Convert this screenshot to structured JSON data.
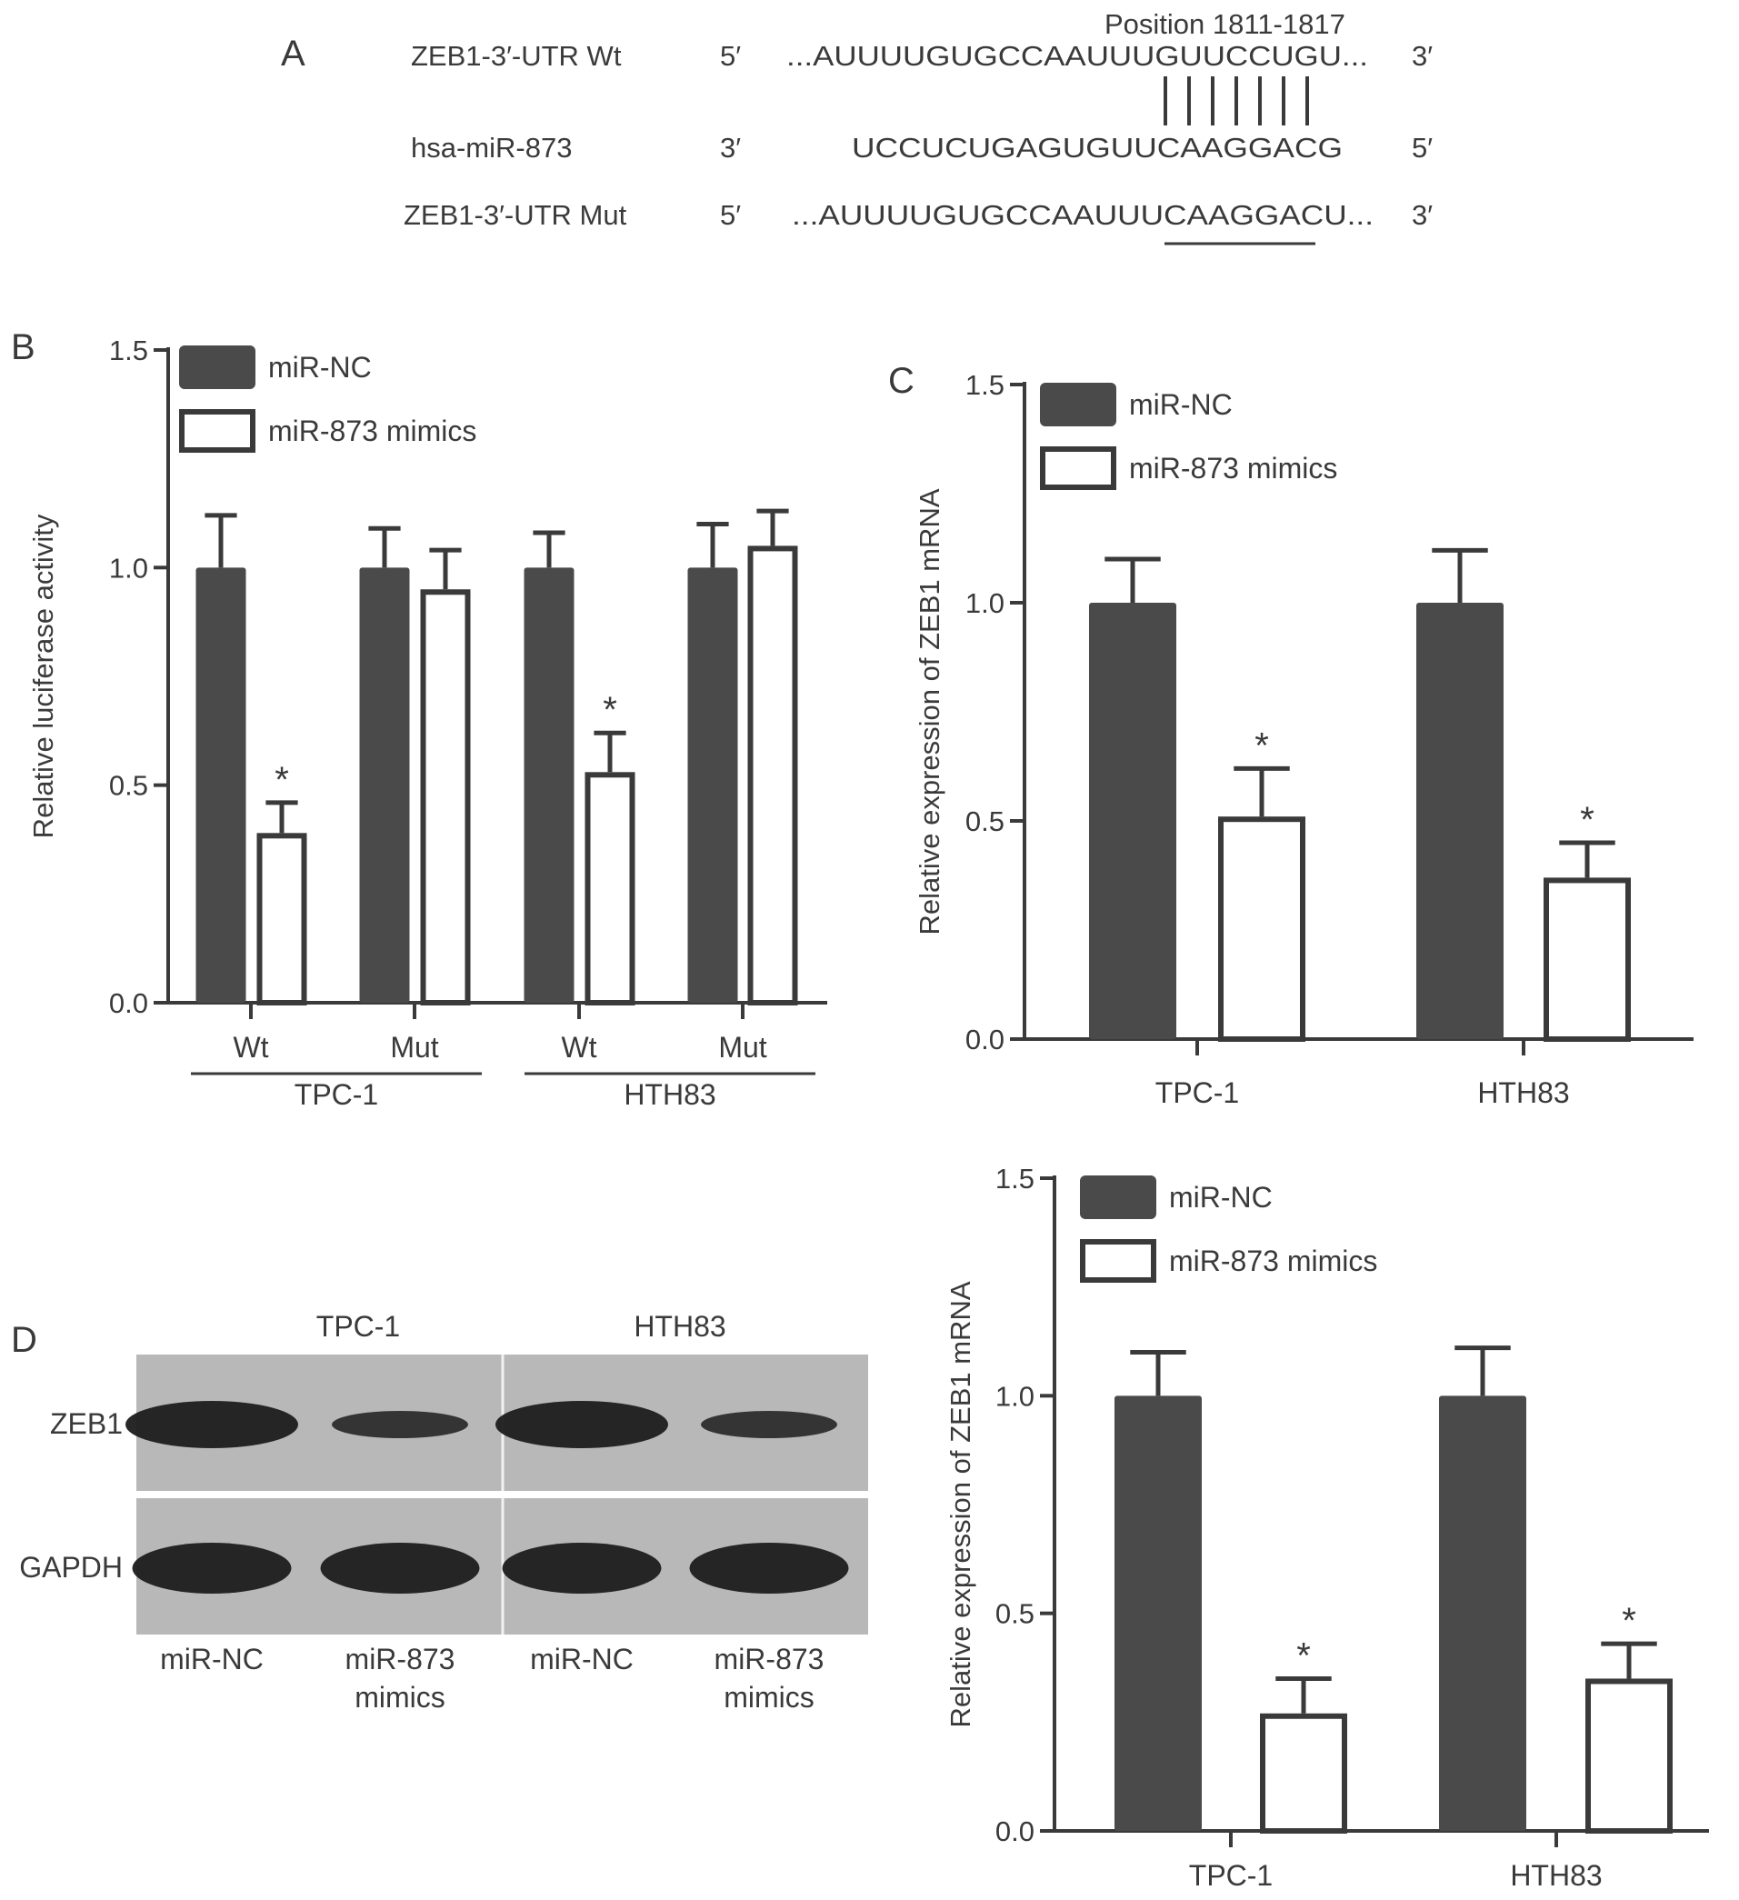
{
  "panel_labels": [
    "A",
    "B",
    "C",
    "D"
  ],
  "sequence_alignment": {
    "position_label": "Position 1811-1817",
    "rows": [
      {
        "name": "ZEB1-3′-UTR Wt",
        "left_end": "5′",
        "sequence": "...AUUUUGUGCCAAUUUGUUCCUGU...",
        "right_end": "3′"
      },
      {
        "name": "hsa-miR-873",
        "left_end": "3′",
        "sequence": "UCCUCUGAGUGUUCAAGGACG",
        "right_end": "5′"
      },
      {
        "name": "ZEB1-3′-UTR Mut",
        "left_end": "5′",
        "sequence": "...AUUUUGUGCCAAUUUCAAGGACU...",
        "right_end": "3′"
      }
    ]
  },
  "legend": {
    "series": [
      "miR-NC",
      "miR-873 mimics"
    ],
    "colors": {
      "miR-NC": "#4a4a4a",
      "miR-873 mimics": "#ffffff"
    }
  },
  "chart_data": [
    {
      "panel": "B",
      "type": "bar",
      "ylabel": "Relative luciferase activity",
      "ylim": [
        0,
        1.5
      ],
      "yticks": [
        "0.0",
        "0.5",
        "1.0",
        "1.5"
      ],
      "categories": [
        "Wt",
        "Mut",
        "Wt",
        "Mut"
      ],
      "groups": [
        {
          "label": "TPC-1",
          "categories": [
            "Wt",
            "Mut"
          ]
        },
        {
          "label": "HTH83",
          "categories": [
            "Wt",
            "Mut"
          ]
        }
      ],
      "series": [
        {
          "name": "miR-NC",
          "values": [
            1.0,
            1.0,
            1.0,
            1.0
          ],
          "errors": [
            0.12,
            0.09,
            0.08,
            0.1
          ]
        },
        {
          "name": "miR-873 mimics",
          "values": [
            0.39,
            0.95,
            0.53,
            1.05
          ],
          "errors": [
            0.07,
            0.09,
            0.09,
            0.08
          ]
        }
      ],
      "significance": [
        "*",
        "",
        "*",
        ""
      ],
      "legend_position": "top-left"
    },
    {
      "panel": "C",
      "type": "bar",
      "ylabel": "Relative expression of ZEB1 mRNA",
      "ylim": [
        0,
        1.5
      ],
      "yticks": [
        "0.0",
        "0.5",
        "1.0",
        "1.5"
      ],
      "categories": [
        "TPC-1",
        "HTH83"
      ],
      "series": [
        {
          "name": "miR-NC",
          "values": [
            1.0,
            1.0
          ],
          "errors": [
            0.1,
            0.12
          ]
        },
        {
          "name": "miR-873 mimics",
          "values": [
            0.51,
            0.37
          ],
          "errors": [
            0.11,
            0.08
          ]
        }
      ],
      "significance": [
        "*",
        "*"
      ],
      "legend_position": "top-left"
    },
    {
      "panel": "D",
      "type": "bar",
      "ylabel": "Relative expression of ZEB1 mRNA",
      "ylim": [
        0,
        1.5
      ],
      "yticks": [
        "0.0",
        "0.5",
        "1.0",
        "1.5"
      ],
      "categories": [
        "TPC-1",
        "HTH83"
      ],
      "series": [
        {
          "name": "miR-NC",
          "values": [
            1.0,
            1.0
          ],
          "errors": [
            0.1,
            0.11
          ]
        },
        {
          "name": "miR-873 mimics",
          "values": [
            0.27,
            0.35
          ],
          "errors": [
            0.08,
            0.08
          ]
        }
      ],
      "significance": [
        "*",
        "*"
      ],
      "legend_position": "top-left"
    }
  ],
  "western_blot": {
    "cell_lines": [
      "TPC-1",
      "HTH83"
    ],
    "proteins": [
      "ZEB1",
      "GAPDH"
    ],
    "lanes": [
      [
        "miR-NC"
      ],
      [
        "miR-873",
        "mimics"
      ],
      [
        "miR-NC"
      ],
      [
        "miR-873",
        "mimics"
      ]
    ],
    "band_intensity": {
      "ZEB1": [
        1.0,
        0.45,
        1.0,
        0.45
      ],
      "GAPDH": [
        1.0,
        1.0,
        1.0,
        1.0
      ]
    }
  }
}
